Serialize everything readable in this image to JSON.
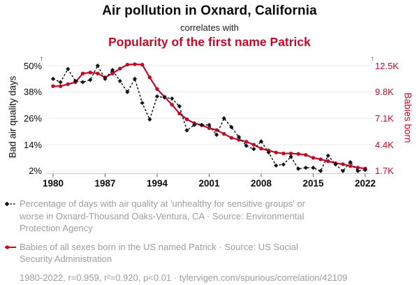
{
  "header": {
    "title": "Air pollution in Oxnard, California",
    "connector": "correlates with",
    "subtitle": "Popularity of the first name Patrick"
  },
  "colors": {
    "accent_red": "#bf0d28",
    "series_black": "#151515",
    "legend_gray": "#9d9d9d",
    "gridline": "#e9e9e9",
    "axis_line": "#c9c9c9",
    "tick_mark": "#777777"
  },
  "chart_data": {
    "type": "line",
    "years": [
      1980,
      1981,
      1982,
      1983,
      1984,
      1985,
      1986,
      1987,
      1988,
      1989,
      1990,
      1991,
      1992,
      1993,
      1994,
      1995,
      1996,
      1997,
      1998,
      1999,
      2000,
      2001,
      2002,
      2003,
      2004,
      2005,
      2006,
      2007,
      2008,
      2009,
      2010,
      2011,
      2012,
      2013,
      2014,
      2015,
      2016,
      2017,
      2018,
      2019,
      2020,
      2021,
      2022
    ],
    "x_ticks": [
      1980,
      1987,
      1994,
      2001,
      2008,
      2015,
      2022
    ],
    "axis_arrow": "↑",
    "left_axis": {
      "label": "Bad air quality days",
      "tick_labels": [
        "50%",
        "38%",
        "26%",
        "14%",
        "2%"
      ],
      "tick_values": [
        50,
        38,
        26,
        14,
        2
      ],
      "range": [
        2,
        50
      ]
    },
    "right_axis": {
      "label": "Babies born",
      "tick_labels": [
        "12.5K",
        "9.8K",
        "7.1K",
        "4.4K",
        "1.7K"
      ],
      "tick_values": [
        12500,
        9800,
        7100,
        4400,
        1700
      ],
      "range": [
        1700,
        12500
      ]
    },
    "series": [
      {
        "name": "Bad air quality days",
        "unit": "percent",
        "axis": "left",
        "line": "dashed",
        "marker": "diamond",
        "color": "#151515",
        "values": [
          44,
          42.5,
          48.5,
          43,
          42.5,
          43.5,
          50,
          44,
          48,
          43,
          38,
          44,
          33,
          25.5,
          36,
          35.5,
          35,
          31.5,
          20.5,
          23,
          23,
          23,
          18.5,
          26,
          22,
          17.5,
          13.5,
          12,
          15.5,
          10.5,
          4.5,
          5,
          8.5,
          3,
          3.5,
          3.5,
          2,
          9,
          5,
          2,
          6,
          2,
          2.5
        ]
      },
      {
        "name": "Babies born",
        "unit": "babies",
        "axis": "right",
        "line": "solid",
        "marker": "circle",
        "color": "#bf0d28",
        "values": [
          10400,
          10400,
          10600,
          10800,
          11700,
          11800,
          11700,
          11300,
          11700,
          12200,
          12600,
          12650,
          12600,
          11300,
          10100,
          9300,
          8500,
          7600,
          7000,
          6600,
          6400,
          6100,
          5900,
          5500,
          5100,
          4900,
          4700,
          4400,
          4000,
          3800,
          3600,
          3500,
          3500,
          3450,
          3350,
          3050,
          2900,
          2700,
          2500,
          2400,
          2200,
          2050,
          1950
        ]
      }
    ],
    "grid": "horizontal",
    "legend_position": "bottom"
  },
  "legend": {
    "air_quality": {
      "text": "Percentage of days with air quality at 'unhealthy for sensitive groups' or worse in Oxnard-Thousand Oaks-Ventura, CA · Source: Environmental Protection Agency"
    },
    "patrick": {
      "text": "Babies of all sexes born in the US named Patrick · Source: US Social Security Administration"
    },
    "stats": "1980-2022, r=0.959, r²=0.920, p<0.01 · tylervigen.com/spurious/correlation/42109"
  }
}
